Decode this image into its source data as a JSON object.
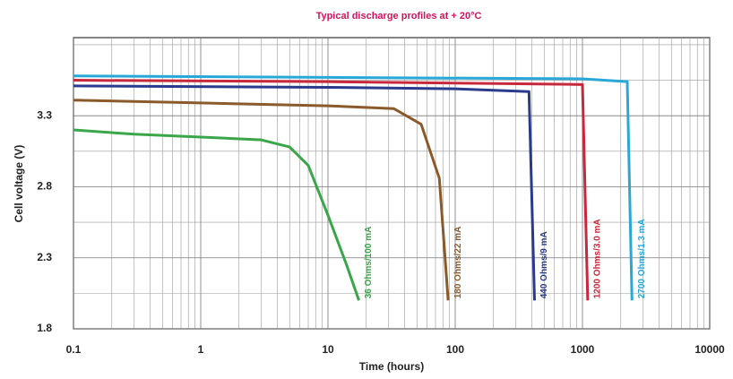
{
  "chart_data": {
    "type": "line",
    "title": "Typical discharge profiles at + 20°C",
    "xlabel": "Time (hours)",
    "ylabel": "Cell voltage (V)",
    "xscale": "log",
    "grid": true,
    "xlim": [
      0.1,
      10000
    ],
    "xticks": [
      0.1,
      1,
      10,
      100,
      1000,
      10000
    ],
    "xminorticks": [
      0.2,
      0.3,
      0.4,
      0.5,
      0.6,
      0.7,
      0.8,
      0.9,
      2,
      3,
      4,
      5,
      6,
      7,
      8,
      9,
      20,
      30,
      40,
      50,
      60,
      70,
      80,
      90,
      200,
      300,
      400,
      500,
      600,
      700,
      800,
      900,
      2000,
      3000,
      4000,
      5000,
      6000,
      7000,
      8000,
      9000
    ],
    "ylim": [
      1.8,
      3.85
    ],
    "yticks": [
      1.8,
      2.3,
      2.8,
      3.3
    ],
    "yminorticks": [
      2.05,
      2.55,
      3.05,
      3.55,
      3.8
    ],
    "series": [
      {
        "name": "36 Ohms/100 mA",
        "color": "#3aa64a",
        "x": [
          0.1,
          0.3,
          1,
          3,
          5,
          7,
          10,
          14,
          17.5
        ],
        "values": [
          3.2,
          3.17,
          3.15,
          3.13,
          3.08,
          2.95,
          2.6,
          2.25,
          2.0
        ]
      },
      {
        "name": "180 Ohms/22 mA",
        "color": "#8b5a2b",
        "x": [
          0.1,
          1,
          10,
          33,
          54,
          75,
          88
        ],
        "values": [
          3.41,
          3.39,
          3.37,
          3.35,
          3.24,
          2.86,
          2.0
        ]
      },
      {
        "name": "440 Ohms/9 mA",
        "color": "#2a3a8c",
        "x": [
          0.1,
          10,
          100,
          380,
          420
        ],
        "values": [
          3.51,
          3.5,
          3.49,
          3.47,
          2.0
        ]
      },
      {
        "name": "1200 Ohms/3.0 mA",
        "color": "#c8283c",
        "x": [
          0.1,
          10,
          100,
          1000,
          1100
        ],
        "values": [
          3.55,
          3.54,
          3.53,
          3.52,
          2.0
        ]
      },
      {
        "name": "2700 Ohms/1.3 mA",
        "color": "#29a8d8",
        "x": [
          0.1,
          10,
          1000,
          2250,
          2450
        ],
        "values": [
          3.58,
          3.57,
          3.56,
          3.54,
          2.0
        ]
      }
    ]
  }
}
